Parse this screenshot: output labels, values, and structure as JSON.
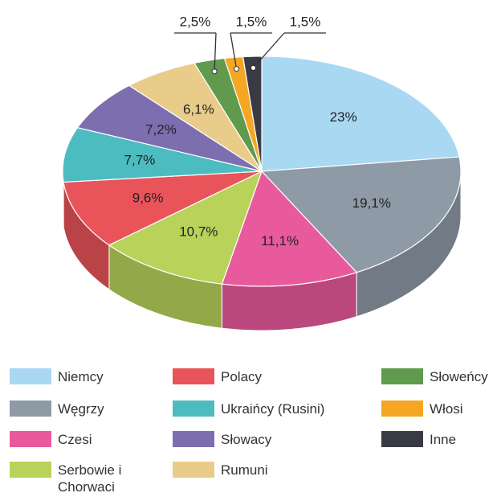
{
  "chart_data": {
    "type": "pie",
    "categories": [
      "Niemcy",
      "Węgrzy",
      "Czesi",
      "Serbowie i Chorwaci",
      "Polacy",
      "Ukraińcy (Rusini)",
      "Słowacy",
      "Rumuni",
      "Słoweńcy",
      "Włosi",
      "Inne"
    ],
    "values": [
      23,
      19.1,
      11.1,
      10.7,
      9.6,
      7.7,
      7.2,
      6.1,
      2.5,
      1.5,
      1.5
    ],
    "value_labels": [
      "23%",
      "19,1%",
      "11,1%",
      "10,7%",
      "9,6%",
      "7,7%",
      "7,2%",
      "6,1%",
      "2,5%",
      "1,5%",
      "1,5%"
    ],
    "colors": [
      "#a9d8f2",
      "#8e9aa6",
      "#e95a9c",
      "#b8d25a",
      "#e8545a",
      "#4dbcc0",
      "#7d6eb0",
      "#e9cc8a",
      "#5f9a4d",
      "#f5a623",
      "#3a3a45"
    ],
    "legend": "bottom"
  }
}
